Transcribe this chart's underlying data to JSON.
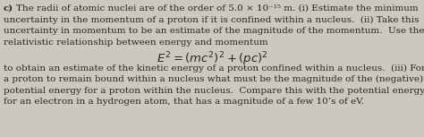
{
  "background_color": "#ccc8c0",
  "label": "c)",
  "line1": "c) The radii of atomic nuclei are of the order of 5.0 × 10⁻¹⁵ m. (i) Estimate the minimum",
  "line2": "uncertainty in the momentum of a proton if it is confined within a nucleus.  (ii) Take this",
  "line3": "uncertainty in momentum to be an estimate of the magnitude of the momentum.  Use the",
  "line4": "relativistic relationship between energy and momentum",
  "equation": "$E^2 = (mc^2)^2 + (pc)^2$",
  "line5": "to obtain an estimate of the kinetic energy of a proton confined within a nucleus.  (iii) For",
  "line6": "a proton to remain bound within a nucleus what must be the magnitude of the (negative)",
  "line7": "potential energy for a proton within the nucleus.  Compare this with the potential energy",
  "line8": "for an electron in a hydrogen atom, that has a magnitude of a few 10’s of eV.",
  "font_size_body": 7.5,
  "font_size_eq": 9.5,
  "text_color": "#2a2520",
  "font_family": "DejaVu Serif",
  "bold_label": "c)"
}
